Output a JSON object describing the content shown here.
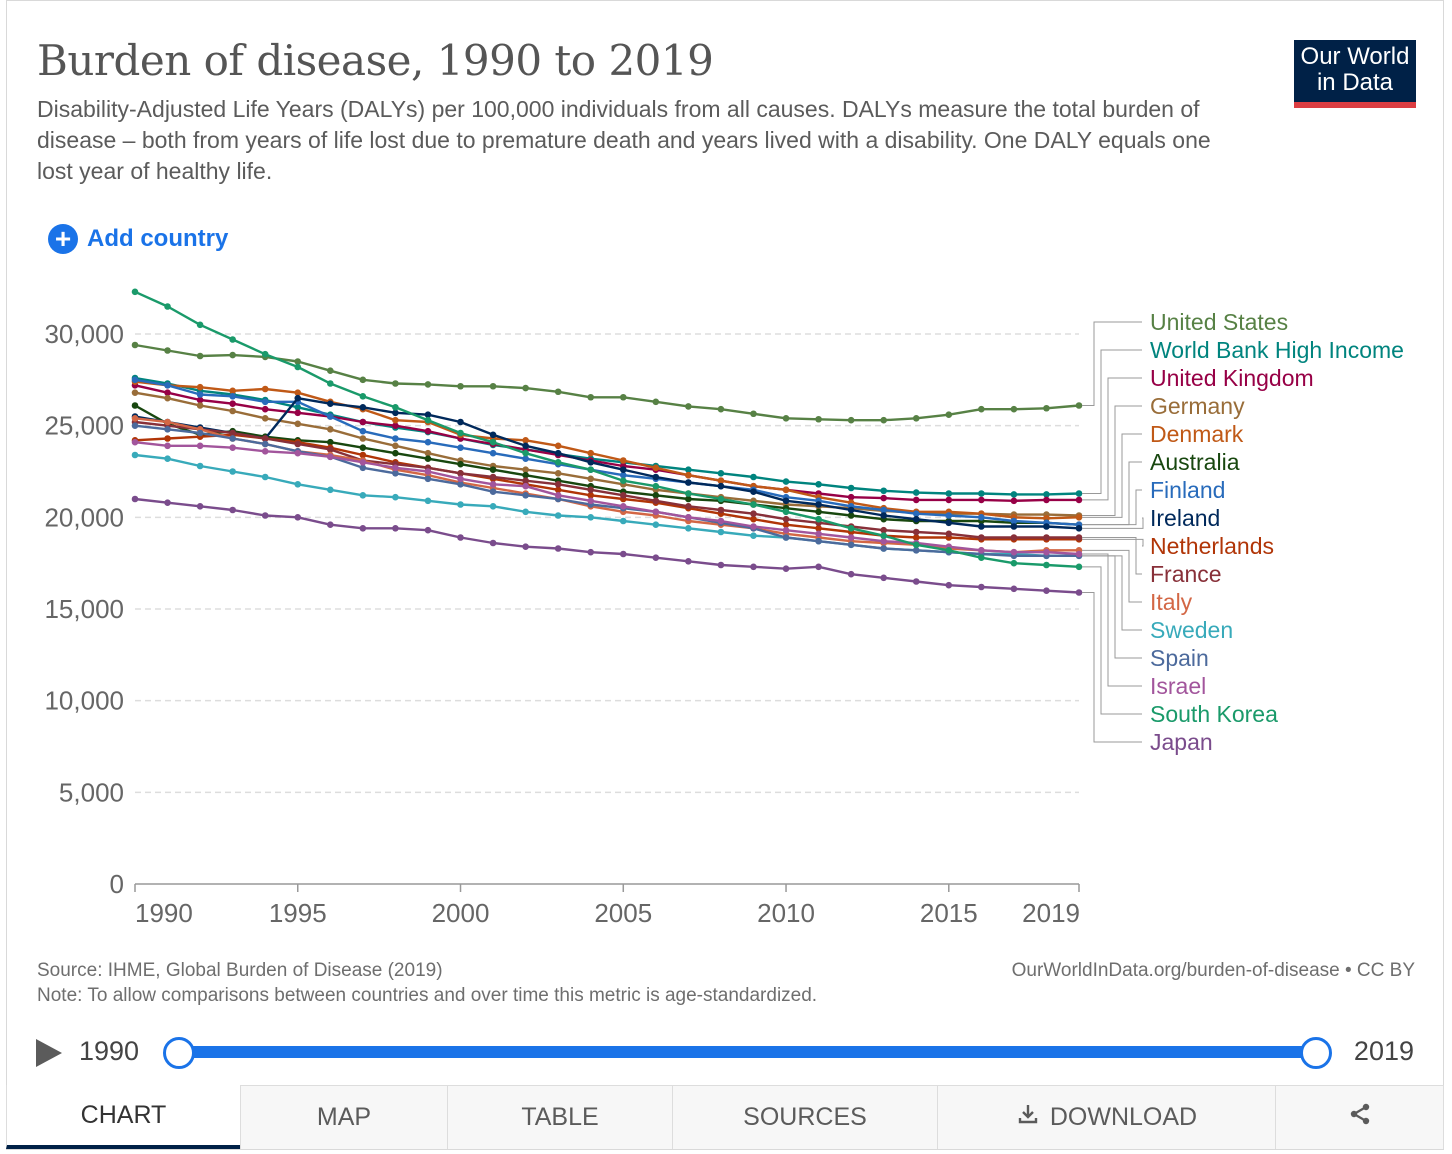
{
  "header": {
    "title": "Burden of disease, 1990 to 2019",
    "subtitle": "Disability-Adjusted Life Years (DALYs) per 100,000 individuals from all causes. DALYs measure the total burden of disease – both from years of life lost due to premature death and years lived with a disability. One DALY equals one lost year of healthy life.",
    "logo_line1": "Our World",
    "logo_line2": "in Data",
    "logo_color": "#002147",
    "logo_accent": "#dc3d42"
  },
  "controls": {
    "add_country_label": "Add country",
    "add_icon": "plus-circle-icon"
  },
  "footer": {
    "source": "Source: IHME, Global Burden of Disease (2019)",
    "note": "Note: To allow comparisons between countries and over time this metric is age-standardized.",
    "url": "OurWorldInData.org/burden-of-disease • CC BY"
  },
  "timeline": {
    "start_label": "1990",
    "end_label": "2019",
    "play_icon": "play-icon",
    "accent": "#1a73e8"
  },
  "tabs": [
    {
      "label": "CHART",
      "active": true
    },
    {
      "label": "MAP"
    },
    {
      "label": "TABLE"
    },
    {
      "label": "SOURCES"
    },
    {
      "label": "DOWNLOAD",
      "icon": "download-icon"
    },
    {
      "label": "",
      "icon": "share-icon"
    }
  ],
  "chart_data": {
    "type": "line",
    "ylim": [
      0,
      30000
    ],
    "yticks": [
      0,
      5000,
      10000,
      15000,
      20000,
      25000,
      30000
    ],
    "ytick_labels": [
      "0",
      "5,000",
      "10,000",
      "15,000",
      "20,000",
      "25,000",
      "30,000"
    ],
    "xticks": [
      1990,
      1995,
      2000,
      2005,
      2010,
      2015,
      2019
    ],
    "xtick_labels": [
      "1990",
      "1995",
      "2000",
      "2005",
      "2010",
      "2015",
      "2019"
    ],
    "grid": "horizontal-dashed",
    "legend_placement": "right",
    "x": [
      1990,
      1991,
      1992,
      1993,
      1994,
      1995,
      1996,
      1997,
      1998,
      1999,
      2000,
      2001,
      2002,
      2003,
      2004,
      2005,
      2006,
      2007,
      2008,
      2009,
      2010,
      2011,
      2012,
      2013,
      2014,
      2015,
      2016,
      2017,
      2018,
      2019
    ],
    "series": [
      {
        "name": "United States",
        "color": "#578145",
        "values": [
          29400,
          29100,
          28800,
          28850,
          28750,
          28500,
          28000,
          27500,
          27300,
          27250,
          27150,
          27150,
          27050,
          26850,
          26550,
          26550,
          26300,
          26050,
          25900,
          25650,
          25400,
          25350,
          25300,
          25300,
          25400,
          25600,
          25900,
          25900,
          25950,
          26100
        ]
      },
      {
        "name": "World Bank High Income",
        "color": "#00847e",
        "values": [
          27600,
          27300,
          26900,
          26700,
          26400,
          26000,
          25600,
          25200,
          24900,
          24650,
          24300,
          23950,
          23700,
          23450,
          23200,
          23000,
          22800,
          22600,
          22400,
          22200,
          21950,
          21800,
          21600,
          21450,
          21350,
          21300,
          21300,
          21250,
          21250,
          21300
        ]
      },
      {
        "name": "United Kingdom",
        "color": "#970046",
        "values": [
          27200,
          26800,
          26400,
          26200,
          25900,
          25700,
          25500,
          25200,
          25000,
          24700,
          24300,
          24000,
          23700,
          23400,
          23100,
          22800,
          22600,
          22300,
          22000,
          21700,
          21500,
          21300,
          21100,
          21050,
          20950,
          20950,
          20950,
          20900,
          20950,
          20950
        ]
      },
      {
        "name": "Germany",
        "color": "#996d39",
        "values": [
          26800,
          26500,
          26100,
          25800,
          25400,
          25100,
          24800,
          24300,
          23900,
          23500,
          23100,
          22800,
          22600,
          22400,
          22100,
          21800,
          21500,
          21300,
          21100,
          20900,
          20700,
          20600,
          20500,
          20350,
          20250,
          20200,
          20200,
          20150,
          20150,
          20100
        ]
      },
      {
        "name": "Denmark",
        "color": "#c05917",
        "values": [
          27400,
          27200,
          27100,
          26900,
          27000,
          26800,
          26300,
          25900,
          25300,
          25200,
          24500,
          24300,
          24200,
          23900,
          23500,
          23100,
          22700,
          22300,
          22000,
          21700,
          21500,
          21100,
          20800,
          20500,
          20300,
          20300,
          20200,
          20000,
          19950,
          20000
        ]
      },
      {
        "name": "Australia",
        "color": "#18470f",
        "values": [
          26100,
          25100,
          24500,
          24700,
          24400,
          24200,
          24100,
          23800,
          23500,
          23200,
          22900,
          22600,
          22300,
          22000,
          21700,
          21400,
          21200,
          21000,
          20900,
          20700,
          20500,
          20300,
          20100,
          19900,
          19800,
          19800,
          19800,
          19700,
          19700,
          19600
        ]
      },
      {
        "name": "Finland",
        "color": "#286bbb",
        "values": [
          27500,
          27200,
          26700,
          26600,
          26300,
          26300,
          25500,
          24700,
          24300,
          24100,
          23800,
          23500,
          23200,
          22900,
          22600,
          22300,
          22100,
          21900,
          21700,
          21500,
          21100,
          20900,
          20600,
          20400,
          20200,
          20100,
          20000,
          19800,
          19700,
          19600
        ]
      },
      {
        "name": "Ireland",
        "color": "#00295b",
        "values": [
          25500,
          25200,
          24900,
          24600,
          24300,
          26500,
          26200,
          26000,
          25700,
          25600,
          25200,
          24500,
          23900,
          23500,
          23000,
          22600,
          22200,
          21900,
          21700,
          21400,
          20900,
          20700,
          20400,
          20100,
          19900,
          19700,
          19500,
          19500,
          19500,
          19400
        ]
      },
      {
        "name": "Netherlands",
        "color": "#b13507",
        "values": [
          24200,
          24300,
          24400,
          24500,
          24300,
          24100,
          23800,
          23400,
          23000,
          22700,
          22400,
          22100,
          21800,
          21500,
          21200,
          21000,
          20800,
          20500,
          20200,
          19900,
          19600,
          19400,
          19200,
          19000,
          18900,
          18900,
          18800,
          18800,
          18800,
          18800
        ]
      },
      {
        "name": "France",
        "color": "#883039",
        "values": [
          25200,
          25000,
          24800,
          24600,
          24300,
          24000,
          23700,
          23100,
          22900,
          22700,
          22400,
          22200,
          22000,
          21800,
          21500,
          21200,
          20900,
          20600,
          20400,
          20200,
          19900,
          19700,
          19500,
          19300,
          19200,
          19100,
          18900,
          18900,
          18900,
          18900
        ]
      },
      {
        "name": "Italy",
        "color": "#d36745",
        "values": [
          25400,
          25200,
          24800,
          24300,
          24000,
          23600,
          23400,
          23100,
          22600,
          22300,
          21900,
          21600,
          21300,
          21000,
          20600,
          20300,
          20100,
          19800,
          19600,
          19400,
          19100,
          18900,
          18700,
          18600,
          18500,
          18300,
          18200,
          18100,
          18200,
          18200
        ]
      },
      {
        "name": "Sweden",
        "color": "#38aaba",
        "values": [
          23400,
          23200,
          22800,
          22500,
          22200,
          21800,
          21500,
          21200,
          21100,
          20900,
          20700,
          20600,
          20300,
          20100,
          20000,
          19800,
          19600,
          19400,
          19200,
          19000,
          18900,
          18700,
          18500,
          18300,
          18200,
          18100,
          18000,
          18000,
          17900,
          17900
        ]
      },
      {
        "name": "Spain",
        "color": "#4c6a9c",
        "values": [
          25000,
          24800,
          24600,
          24300,
          24000,
          23600,
          23300,
          22700,
          22400,
          22100,
          21800,
          21400,
          21200,
          21000,
          20700,
          20500,
          20300,
          20000,
          19700,
          19400,
          18900,
          18700,
          18500,
          18300,
          18200,
          18100,
          18000,
          17900,
          17900,
          17900
        ]
      },
      {
        "name": "Israel",
        "color": "#a2559c",
        "values": [
          24100,
          23900,
          23900,
          23800,
          23600,
          23500,
          23300,
          23000,
          22700,
          22500,
          22100,
          21800,
          21700,
          21200,
          20900,
          20600,
          20300,
          20000,
          19800,
          19500,
          19300,
          19100,
          18900,
          18700,
          18600,
          18400,
          18200,
          18100,
          18100,
          18000
        ]
      },
      {
        "name": "South Korea",
        "color": "#1a9a6a",
        "values": [
          32300,
          31500,
          30500,
          29700,
          28900,
          28200,
          27300,
          26600,
          26000,
          25300,
          24600,
          24100,
          23500,
          23000,
          22600,
          22000,
          21700,
          21300,
          21000,
          20700,
          20300,
          19900,
          19400,
          19000,
          18500,
          18200,
          17800,
          17500,
          17400,
          17300
        ]
      },
      {
        "name": "Japan",
        "color": "#7a4c8c",
        "values": [
          21000,
          20800,
          20600,
          20400,
          20100,
          20000,
          19600,
          19400,
          19400,
          19300,
          18900,
          18600,
          18400,
          18300,
          18100,
          18000,
          17800,
          17600,
          17400,
          17300,
          17200,
          17300,
          16900,
          16700,
          16500,
          16300,
          16200,
          16100,
          16000,
          15900
        ]
      }
    ]
  }
}
